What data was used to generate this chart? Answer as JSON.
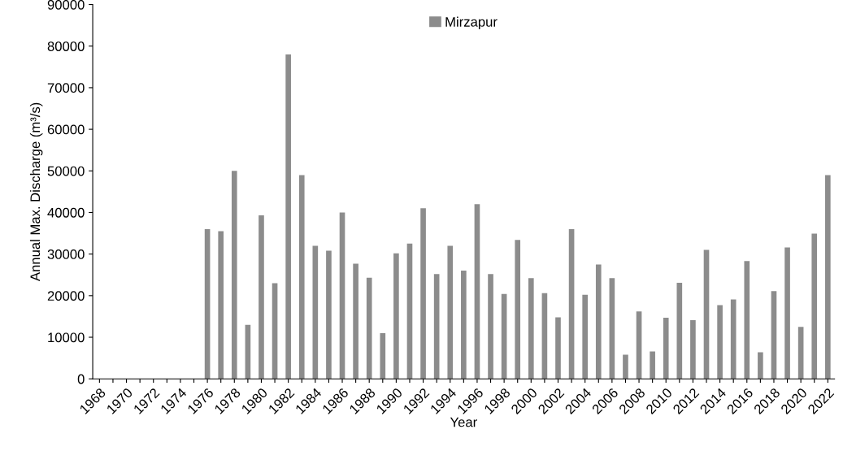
{
  "chart_data": {
    "type": "bar",
    "categories": [
      "1968",
      null,
      "1970",
      null,
      "1972",
      null,
      "1974",
      null,
      "1976",
      null,
      "1978",
      null,
      "1980",
      null,
      "1982",
      null,
      "1984",
      null,
      "1986",
      null,
      "1988",
      null,
      "1990",
      null,
      "1992",
      null,
      "1994",
      null,
      "1996",
      null,
      "1998",
      null,
      "2000",
      null,
      "2002",
      null,
      "2004",
      null,
      "2006",
      null,
      "2008",
      null,
      "2010",
      null,
      "2012",
      null,
      "2014",
      null,
      "2016",
      null,
      "2018",
      null,
      "2020",
      null,
      "2022"
    ],
    "series": [
      {
        "name": "Mirzapur",
        "color": "#8c8c8c",
        "values": [
          0,
          0,
          0,
          0,
          0,
          0,
          0,
          0,
          36000,
          35500,
          50000,
          13000,
          39300,
          23000,
          78000,
          49000,
          32000,
          30800,
          40000,
          27700,
          24300,
          11000,
          30200,
          32500,
          41000,
          25200,
          32000,
          26000,
          42000,
          25200,
          20400,
          33400,
          24200,
          20600,
          14800,
          36000,
          20200,
          27500,
          24200,
          5800,
          16200,
          6600,
          14700,
          23100,
          14100,
          31000,
          17700,
          19100,
          28300,
          6400,
          21100,
          31600,
          12500,
          34900,
          49000
        ]
      }
    ],
    "xlabel": "Year",
    "ylabel": "Annual Max. Discharge (m³/s)",
    "ylim": [
      0,
      90000
    ],
    "yticks": [
      0,
      10000,
      20000,
      30000,
      40000,
      50000,
      60000,
      70000,
      80000,
      90000
    ],
    "grid": false,
    "legend": "top"
  }
}
